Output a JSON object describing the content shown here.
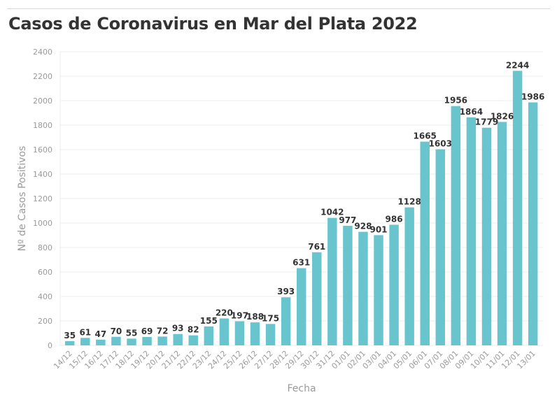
{
  "title": "Casos de Coronavirus en Mar del Plata 2022",
  "colors": {
    "bar": "#69c5cd",
    "grid": "#ececec",
    "text": "#333333",
    "muted": "#9a9a9a"
  },
  "chart_data": {
    "type": "bar",
    "title": "Casos de Coronavirus en Mar del Plata 2022",
    "xlabel": "Fecha",
    "ylabel": "Nº de Casos Positivos",
    "ylim": [
      0,
      2400
    ],
    "yticks": [
      0,
      200,
      400,
      600,
      800,
      1000,
      1200,
      1400,
      1600,
      1800,
      2000,
      2200,
      2400
    ],
    "grid": true,
    "categories": [
      "14/12",
      "15/12",
      "16/12",
      "17/12",
      "18/12",
      "19/12",
      "20/12",
      "21/12",
      "22/12",
      "23/12",
      "24/12",
      "25/12",
      "26/12",
      "27/12",
      "28/12",
      "29/12",
      "30/12",
      "31/12",
      "01/01",
      "02/01",
      "03/01",
      "04/01",
      "05/01",
      "06/01",
      "07/01",
      "08/01",
      "09/01",
      "10/01",
      "11/01",
      "12/01",
      "13/01"
    ],
    "values": [
      35,
      61,
      47,
      70,
      55,
      69,
      72,
      93,
      82,
      155,
      220,
      197,
      188,
      175,
      393,
      631,
      761,
      1042,
      977,
      928,
      901,
      986,
      1128,
      1665,
      1603,
      1956,
      1864,
      1779,
      1826,
      2244,
      1986
    ]
  }
}
